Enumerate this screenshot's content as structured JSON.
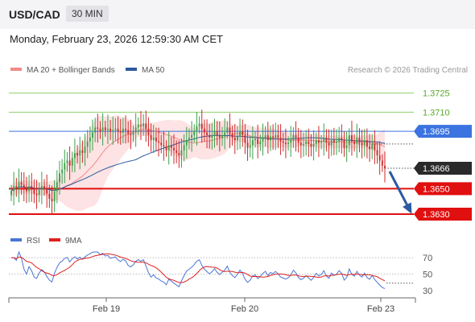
{
  "header": {
    "symbol": "USD/CAD",
    "timeframe": "30 MIN"
  },
  "timestamp": "Monday, February 23, 2026 12:59:30 AM CET",
  "legend": {
    "items": [
      {
        "label": "MA 20 + Bollinger Bands",
        "color": "#f08a8a"
      },
      {
        "label": "MA 50",
        "color": "#2c5aa0"
      }
    ],
    "credit": "Research © 2026 Trading Central"
  },
  "rsi_legend": {
    "items": [
      {
        "label": "RSI",
        "color": "#4a76d4"
      },
      {
        "label": "9MA",
        "color": "#e02020"
      }
    ]
  },
  "chart_data": [
    {
      "type": "candlestick",
      "xticks": [
        "Feb 19",
        "Feb 20",
        "Feb 23"
      ],
      "ylim": [
        1.3618,
        1.3738
      ],
      "levels": [
        {
          "value": 1.3725,
          "label": "1.3725",
          "color": "#8fce6a"
        },
        {
          "value": 1.371,
          "label": "1.3710",
          "color": "#8fce6a"
        },
        {
          "value": 1.3695,
          "label": "1.3695",
          "color": "#3b73e0"
        },
        {
          "value": 1.3666,
          "label": "1.3666",
          "color": "#2a2a2a"
        },
        {
          "value": 1.365,
          "label": "1.3650",
          "color": "#e01010"
        },
        {
          "value": 1.363,
          "label": "1.3630",
          "color": "#e01010"
        }
      ],
      "close": [
        1.3648,
        1.3652,
        1.365,
        1.3655,
        1.3653,
        1.365,
        1.3648,
        1.3652,
        1.365,
        1.3646,
        1.3645,
        1.3649,
        1.3652,
        1.365,
        1.3646,
        1.3642,
        1.364,
        1.3648,
        1.3655,
        1.3662,
        1.3665,
        1.367,
        1.3672,
        1.3668,
        1.3674,
        1.3678,
        1.3676,
        1.368,
        1.3678,
        1.3683,
        1.3687,
        1.369,
        1.3694,
        1.3698,
        1.3697,
        1.3695,
        1.3698,
        1.3696,
        1.3697,
        1.3695,
        1.3696,
        1.3697,
        1.3695,
        1.3694,
        1.3697,
        1.3696,
        1.3693,
        1.3692,
        1.3694,
        1.3698,
        1.37,
        1.3699,
        1.3701,
        1.3697,
        1.3692,
        1.3688,
        1.369,
        1.3687,
        1.3686,
        1.3684,
        1.3683,
        1.368,
        1.3684,
        1.3682,
        1.368,
        1.3678,
        1.3676,
        1.368,
        1.3684,
        1.3688,
        1.369,
        1.3692,
        1.3695,
        1.3699,
        1.3701,
        1.3697,
        1.3694,
        1.3692,
        1.369,
        1.3692,
        1.3695,
        1.3692,
        1.369,
        1.3692,
        1.3694,
        1.3698,
        1.3693,
        1.369,
        1.3688,
        1.3691,
        1.3695,
        1.3692,
        1.3686,
        1.3682,
        1.3684,
        1.3688,
        1.3689,
        1.3685,
        1.3687,
        1.369,
        1.3692,
        1.3688,
        1.3691,
        1.369,
        1.3692,
        1.369,
        1.3687,
        1.3686,
        1.3685,
        1.3686,
        1.3688,
        1.3692,
        1.369,
        1.3686,
        1.3684,
        1.3685,
        1.3687,
        1.3685,
        1.3683,
        1.3685,
        1.3688,
        1.3686,
        1.3687,
        1.369,
        1.3686,
        1.3684,
        1.3688,
        1.3686,
        1.3687,
        1.369,
        1.3688,
        1.3682,
        1.3684,
        1.3692,
        1.3687,
        1.3685,
        1.369,
        1.3686,
        1.3684,
        1.3688,
        1.3683,
        1.3681,
        1.3685,
        1.368,
        1.3676,
        1.3672,
        1.3668,
        1.3666
      ]
    },
    {
      "type": "line",
      "title": "RSI",
      "ylim": [
        25,
        78
      ],
      "yticks": [
        30,
        50,
        70
      ],
      "series": [
        {
          "name": "RSI",
          "color": "#4a76d4"
        },
        {
          "name": "9MA",
          "color": "#e02020"
        }
      ]
    }
  ]
}
